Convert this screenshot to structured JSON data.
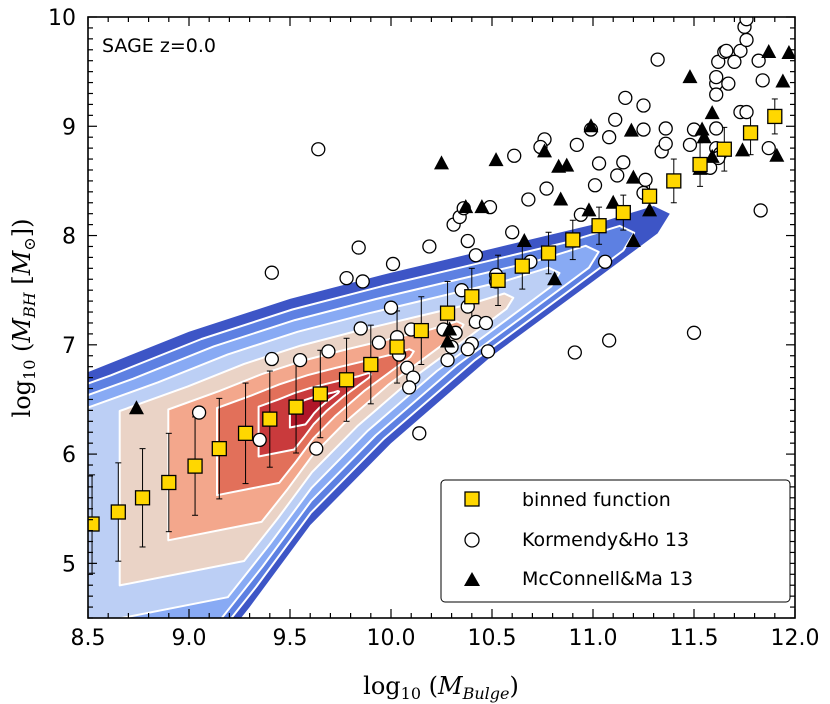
{
  "chart_data": {
    "type": "scatter",
    "annotation": "SAGE z=0.0",
    "xlabel_parts": [
      "log",
      "10",
      " (",
      "M",
      "Bulge",
      ")"
    ],
    "ylabel_parts": [
      "log",
      "10",
      " (",
      "M",
      "BH",
      " [",
      "M",
      "⊙",
      "])"
    ],
    "xlim": [
      8.5,
      12.0
    ],
    "ylim": [
      4.5,
      10.0
    ],
    "xticks": [
      "8.5",
      "9.0",
      "9.5",
      "10.0",
      "10.5",
      "11.0",
      "11.5",
      "12.0"
    ],
    "yticks": [
      "5",
      "6",
      "7",
      "8",
      "9",
      "10"
    ],
    "grid": false,
    "legend_placement": "lower-right",
    "colors": {
      "binned": "#ffd700",
      "contours": [
        "#3d55c6",
        "#5d80e2",
        "#88aaf4",
        "#bccff5",
        "#ead3c6",
        "#f3a78c",
        "#e2705a",
        "#c93a3c",
        "#b01628"
      ]
    },
    "density_contours": "filled model density, blue (low) to red (high), peak near (9.6, 6.45)",
    "series": [
      {
        "name": "binned function",
        "marker": "square",
        "x": [
          8.52,
          8.65,
          8.77,
          8.9,
          9.03,
          9.15,
          9.28,
          9.4,
          9.53,
          9.65,
          9.78,
          9.9,
          10.03,
          10.15,
          10.28,
          10.4,
          10.53,
          10.65,
          10.78,
          10.9,
          11.03,
          11.15,
          11.28,
          11.4,
          11.53,
          11.65,
          11.78,
          11.9
        ],
        "y": [
          5.36,
          5.47,
          5.6,
          5.74,
          5.89,
          6.05,
          6.19,
          6.32,
          6.43,
          6.55,
          6.68,
          6.82,
          6.98,
          7.13,
          7.29,
          7.44,
          7.59,
          7.72,
          7.84,
          7.96,
          8.09,
          8.21,
          8.36,
          8.5,
          8.65,
          8.79,
          8.94,
          9.09
        ],
        "yerr": [
          0.45,
          0.45,
          0.45,
          0.45,
          0.45,
          0.46,
          0.46,
          0.44,
          0.42,
          0.4,
          0.38,
          0.36,
          0.33,
          0.31,
          0.29,
          0.26,
          0.23,
          0.21,
          0.19,
          0.18,
          0.17,
          0.16,
          0.15,
          0.2,
          0.2,
          0.2,
          0.2,
          0.16
        ]
      },
      {
        "name": "Kormendy&Ho 13",
        "marker": "circle",
        "x": [
          9.64,
          9.41,
          9.84,
          9.78,
          9.86,
          10.01,
          10.19,
          10.31,
          10.34,
          10.36,
          10.49,
          10.38,
          10.42,
          10.52,
          10.52,
          10.35,
          10.38,
          10.42,
          10.47,
          10.32,
          10.3,
          10.4,
          10.38,
          10.28,
          10.26,
          10.1,
          10.03,
          10.0,
          9.85,
          9.69,
          9.55,
          9.41,
          9.35,
          9.63,
          9.05,
          9.94,
          10.04,
          10.08,
          10.11,
          10.09,
          10.14,
          10.48,
          10.6,
          10.68,
          10.61,
          10.76,
          10.74,
          10.92,
          10.99,
          11.08,
          11.15,
          11.26,
          11.34,
          11.36,
          11.32,
          11.16,
          11.25,
          11.25,
          11.11,
          11.01,
          10.94,
          11.12,
          11.25,
          11.06,
          11.08,
          10.91,
          10.69,
          11.03,
          10.77,
          11.5,
          11.5,
          11.48,
          11.61,
          11.61,
          11.63,
          11.58,
          11.62,
          11.62,
          11.65,
          11.66,
          11.73,
          11.76,
          11.61,
          11.67,
          11.61,
          11.61,
          11.7,
          11.82,
          11.84,
          11.75,
          11.76,
          11.83,
          11.87,
          11.73,
          11.76,
          11.36
        ],
        "y": [
          8.79,
          7.66,
          7.89,
          7.61,
          7.58,
          7.74,
          7.9,
          8.1,
          8.17,
          8.25,
          8.26,
          7.95,
          7.82,
          7.64,
          7.58,
          7.5,
          7.35,
          7.21,
          7.2,
          7.11,
          6.98,
          7.01,
          6.96,
          6.86,
          7.14,
          7.14,
          7.07,
          7.34,
          7.15,
          6.94,
          6.86,
          6.87,
          6.13,
          6.05,
          6.38,
          7.02,
          6.91,
          6.79,
          6.7,
          6.61,
          6.19,
          6.94,
          8.03,
          8.33,
          8.73,
          8.88,
          8.81,
          8.83,
          8.97,
          8.9,
          8.67,
          8.51,
          8.77,
          8.98,
          9.61,
          9.26,
          9.19,
          8.97,
          9.06,
          8.46,
          8.19,
          8.55,
          8.39,
          7.76,
          7.04,
          6.93,
          7.76,
          8.66,
          8.43,
          7.11,
          8.97,
          8.83,
          8.98,
          8.8,
          8.75,
          8.62,
          8.71,
          9.59,
          9.68,
          9.69,
          9.69,
          9.79,
          9.39,
          9.39,
          9.29,
          9.45,
          9.59,
          9.6,
          9.42,
          9.91,
          9.98,
          8.23,
          8.8,
          9.13,
          9.13,
          8.84
        ]
      },
      {
        "name": "McConnell&Ma 13",
        "marker": "triangle",
        "x": [
          10.25,
          10.52,
          10.76,
          10.83,
          10.87,
          10.99,
          11.19,
          11.48,
          11.59,
          11.54,
          11.55,
          11.59,
          11.53,
          11.74,
          11.87,
          11.97,
          11.94,
          11.91,
          11.2,
          11.28,
          11.2,
          11.1,
          10.98,
          10.84,
          10.66,
          10.81,
          10.37,
          10.45,
          10.29,
          10.28,
          8.74
        ],
        "y": [
          8.66,
          8.69,
          8.77,
          8.63,
          8.64,
          9.0,
          8.96,
          9.45,
          9.12,
          8.97,
          8.9,
          8.72,
          8.61,
          8.78,
          9.68,
          9.67,
          9.41,
          8.73,
          8.53,
          8.23,
          7.95,
          8.3,
          8.23,
          8.33,
          7.95,
          7.6,
          8.26,
          8.26,
          7.14,
          7.03,
          6.42
        ]
      }
    ]
  }
}
